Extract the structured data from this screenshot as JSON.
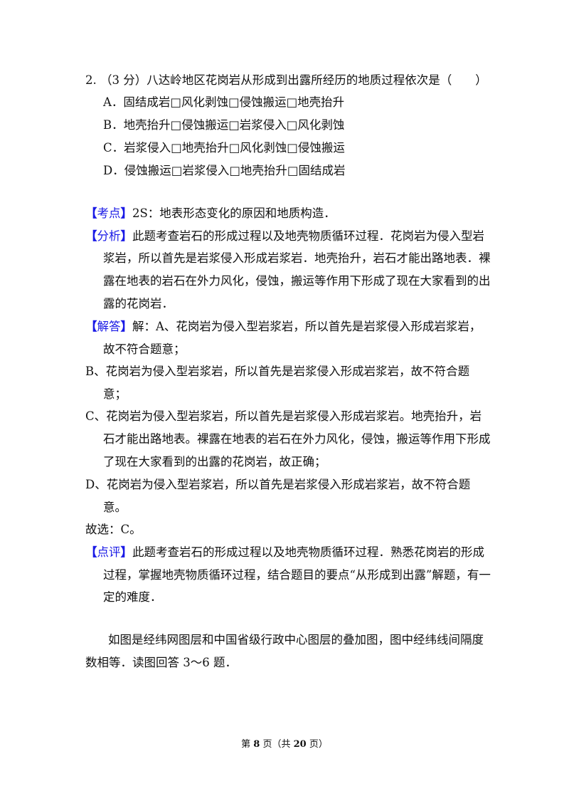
{
  "question": {
    "stem": "2. （3 分）八达岭地区花岗岩从形成到出露所经历的地质过程依次是（　　）",
    "options": [
      "A．固结成岩□风化剥蚀□侵蚀搬运□地壳抬升",
      "B．地壳抬升□侵蚀搬运□岩浆侵入□风化剥蚀",
      "C．岩浆侵入□地壳抬升□风化剥蚀□侵蚀搬运",
      "D．侵蚀搬运□岩浆侵入□地壳抬升□固结成岩"
    ]
  },
  "analysis": {
    "kaodian_label": "考点",
    "kaodian_text": "2S：地表形态变化的原因和地质构造．",
    "fenxi_label": "分析",
    "fenxi_lines": [
      "此题考查岩石的形成过程以及地壳物质循环过程．花岗岩为侵入型岩",
      "浆岩，所以首先是岩浆侵入形成岩浆岩．地壳抬升，岩石才能出路地表．裸",
      "露在地表的岩石在外力风化，侵蚀，搬运等作用下形成了现在大家看到的出",
      "露的花岗岩．"
    ],
    "jieda_label": "解答",
    "jieda_lines": [
      "解：A、花岗岩为侵入型岩浆岩，所以首先是岩浆侵入形成岩浆岩，",
      "故不符合题意；"
    ],
    "b_lines": [
      "B、花岗岩为侵入型岩浆岩，所以首先是岩浆侵入形成岩浆岩，故不符合题",
      "意；"
    ],
    "c_lines": [
      "C、花岗岩为侵入型岩浆岩，所以首先是岩浆侵入形成岩浆岩。地壳抬升，岩",
      "石才能出路地表。裸露在地表的岩石在外力风化，侵蚀，搬运等作用下形成",
      "了现在大家看到的出露的花岗岩，故正确；"
    ],
    "d_lines": [
      "D、花岗岩为侵入型岩浆岩，所以首先是岩浆侵入形成岩浆岩，故不符合题",
      "意。"
    ],
    "answer": "故选：C。",
    "dianping_label": "点评",
    "dianping_lines": [
      "此题考查岩石的形成过程以及地壳物质循环过程．熟悉花岗岩的形成",
      "过程，掌握地壳物质循环过程，结合题目的要点“从形成到出露”解题，有一",
      "定的难度．"
    ]
  },
  "intro_lines": [
    "如图是经纬网图层和中国省级行政中心图层的叠加图，图中经纬线间隔度",
    "数相等．读图回答 3～6 题．"
  ],
  "footer": {
    "prefix": "第 ",
    "page": "8",
    "mid": " 页（共 ",
    "total": "20",
    "suffix": " 页）"
  },
  "colors": {
    "label": "#1a1ae6",
    "text": "#111111"
  }
}
